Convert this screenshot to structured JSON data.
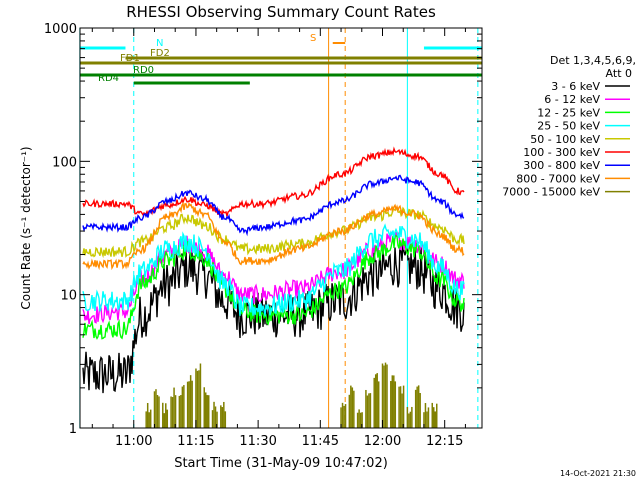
{
  "chart_data": {
    "type": "line",
    "title": "RHESSI Observing Summary Count Rates",
    "xlabel": "Start Time (31-May-09 10:47:02)",
    "ylabel": "Count Rate (s⁻¹ detector⁻¹)",
    "y_scale": "log",
    "ylim": [
      1,
      1000
    ],
    "xlim": [
      "10:47:02",
      "12:24:00"
    ],
    "x_ticks": [
      "11:00",
      "11:15",
      "11:30",
      "11:45",
      "12:00",
      "12:15"
    ],
    "y_ticks": [
      "1",
      "10",
      "100",
      "1000"
    ],
    "legend_header": [
      "Det 1,3,4,5,6,9,",
      "Att 0"
    ],
    "legend_position": "right",
    "timestamp": "14-Oct-2021 21:30",
    "series": [
      {
        "name": "3 - 6 keV",
        "color": "#000000",
        "x": [
          "10:47",
          "10:58",
          "11:02",
          "11:08",
          "11:13",
          "11:17",
          "11:22",
          "11:26",
          "11:31",
          "11:40",
          "11:50",
          "11:58",
          "12:03",
          "12:08",
          "12:14",
          "12:18",
          "12:23"
        ],
        "values": [
          2.5,
          2.5,
          7,
          12,
          16,
          14,
          9,
          7,
          7,
          7,
          9,
          14,
          17,
          16,
          11,
          8,
          6
        ]
      },
      {
        "name": "6 - 12 keV",
        "color": "#ff00ff",
        "x": [
          "10:47",
          "10:58",
          "11:02",
          "11:08",
          "11:13",
          "11:17",
          "11:22",
          "11:26",
          "11:31",
          "11:40",
          "11:50",
          "11:58",
          "12:03",
          "12:08",
          "12:14",
          "12:18",
          "12:23"
        ],
        "values": [
          7,
          7.5,
          13,
          20,
          24,
          21,
          14,
          10,
          10,
          11,
          15,
          22,
          26,
          24,
          17,
          13,
          11
        ]
      },
      {
        "name": "12 - 25 keV",
        "color": "#00ff00",
        "x": [
          "10:47",
          "10:58",
          "11:02",
          "11:08",
          "11:13",
          "11:17",
          "11:22",
          "11:26",
          "11:31",
          "11:40",
          "11:50",
          "11:58",
          "12:03",
          "12:08",
          "12:14",
          "12:18",
          "12:23"
        ],
        "values": [
          5.5,
          5.5,
          12,
          18,
          22,
          19,
          11,
          7.5,
          7,
          7,
          11,
          20,
          24,
          22,
          13,
          9,
          6
        ]
      },
      {
        "name": "25 - 50 keV",
        "color": "#00ffff",
        "x": [
          "10:47",
          "10:58",
          "11:02",
          "11:08",
          "11:13",
          "11:17",
          "11:22",
          "11:26",
          "11:31",
          "11:40",
          "11:50",
          "11:58",
          "12:03",
          "12:08",
          "12:14",
          "12:18",
          "12:23"
        ],
        "values": [
          9,
          9,
          15,
          22,
          25,
          22,
          12,
          8,
          8,
          9,
          15,
          26,
          29,
          26,
          16,
          11,
          9
        ]
      },
      {
        "name": "50 - 100 keV",
        "color": "#c8c800",
        "x": [
          "10:47",
          "10:58",
          "11:02",
          "11:08",
          "11:13",
          "11:17",
          "11:22",
          "11:26",
          "11:31",
          "11:40",
          "11:50",
          "11:58",
          "12:03",
          "12:08",
          "12:14",
          "12:18",
          "12:23"
        ],
        "values": [
          21,
          21,
          25,
          32,
          38,
          33,
          26,
          22,
          22,
          24,
          30,
          38,
          42,
          40,
          32,
          26,
          23
        ]
      },
      {
        "name": "100 - 300 keV",
        "color": "#ff0000",
        "x": [
          "10:47",
          "10:58",
          "11:02",
          "11:08",
          "11:13",
          "11:17",
          "11:22",
          "11:26",
          "11:31",
          "11:40",
          "11:50",
          "11:58",
          "12:03",
          "12:08",
          "12:14",
          "12:18",
          "12:23"
        ],
        "values": [
          48,
          48,
          40,
          47,
          52,
          47,
          40,
          48,
          48,
          55,
          80,
          110,
          118,
          110,
          80,
          60,
          48
        ]
      },
      {
        "name": "300 - 800 keV",
        "color": "#0000ff",
        "x": [
          "10:47",
          "10:58",
          "11:02",
          "11:08",
          "11:13",
          "11:17",
          "11:22",
          "11:26",
          "11:31",
          "11:40",
          "11:50",
          "11:58",
          "12:03",
          "12:08",
          "12:14",
          "12:18",
          "12:23"
        ],
        "values": [
          32,
          32,
          38,
          50,
          58,
          52,
          38,
          30,
          32,
          36,
          50,
          68,
          75,
          70,
          50,
          40,
          33
        ]
      },
      {
        "name": "800 - 7000 keV",
        "color": "#ff8c00",
        "x": [
          "10:47",
          "10:58",
          "11:02",
          "11:08",
          "11:13",
          "11:17",
          "11:22",
          "11:26",
          "11:31",
          "11:40",
          "11:50",
          "11:58",
          "12:03",
          "12:08",
          "12:14",
          "12:18",
          "12:23"
        ],
        "values": [
          17,
          17,
          22,
          38,
          46,
          40,
          25,
          18,
          18,
          22,
          30,
          40,
          44,
          40,
          28,
          22,
          18
        ]
      },
      {
        "name": "7000 - 15000 keV",
        "color": "#808000",
        "x": [
          "11:03",
          "11:05",
          "11:07",
          "11:09",
          "11:11",
          "11:13",
          "11:15",
          "11:17",
          "11:19",
          "11:21",
          "11:50",
          "11:52",
          "11:54",
          "11:56",
          "11:58",
          "12:00",
          "12:02",
          "12:04",
          "12:06",
          "12:08",
          "12:10",
          "12:12"
        ],
        "values": [
          1.5,
          2,
          1.5,
          2,
          2,
          2.5,
          3,
          2,
          1.5,
          1.5,
          1.5,
          2,
          1.5,
          2,
          2.5,
          3,
          2.5,
          2,
          1.5,
          2,
          1.5,
          1.5
        ]
      }
    ],
    "flag_bars": [
      {
        "name": "N",
        "color": "#00ffff",
        "segments": [
          [
            "10:47",
            "10:58"
          ],
          [
            "12:10",
            "12:24"
          ]
        ]
      },
      {
        "name": "FD1",
        "color": "#808000",
        "segments": [
          [
            "10:47",
            "12:24"
          ]
        ]
      },
      {
        "name": "FD2",
        "color": "#808000",
        "segments": [
          [
            "10:58",
            "12:24"
          ]
        ]
      },
      {
        "name": "RD0",
        "color": "#008000",
        "segments": [
          [
            "10:47",
            "12:24"
          ]
        ]
      },
      {
        "name": "RD4",
        "color": "#008000",
        "segments": [
          [
            "11:00",
            "11:28"
          ]
        ]
      },
      {
        "name": "S",
        "color": "#ff8c00",
        "segments": [
          [
            "11:48",
            "11:51"
          ]
        ]
      }
    ],
    "vertical_markers": [
      {
        "time": "10:47",
        "color": "#00ffff",
        "style": "solid"
      },
      {
        "time": "11:00",
        "color": "#00ffff",
        "style": "dashed"
      },
      {
        "time": "11:47",
        "color": "#ff8c00",
        "style": "solid"
      },
      {
        "time": "11:51",
        "color": "#ff8c00",
        "style": "dashed"
      },
      {
        "time": "12:06",
        "color": "#00ffff",
        "style": "solid"
      },
      {
        "time": "12:23",
        "color": "#00ffff",
        "style": "dashed"
      }
    ],
    "grid": false
  }
}
